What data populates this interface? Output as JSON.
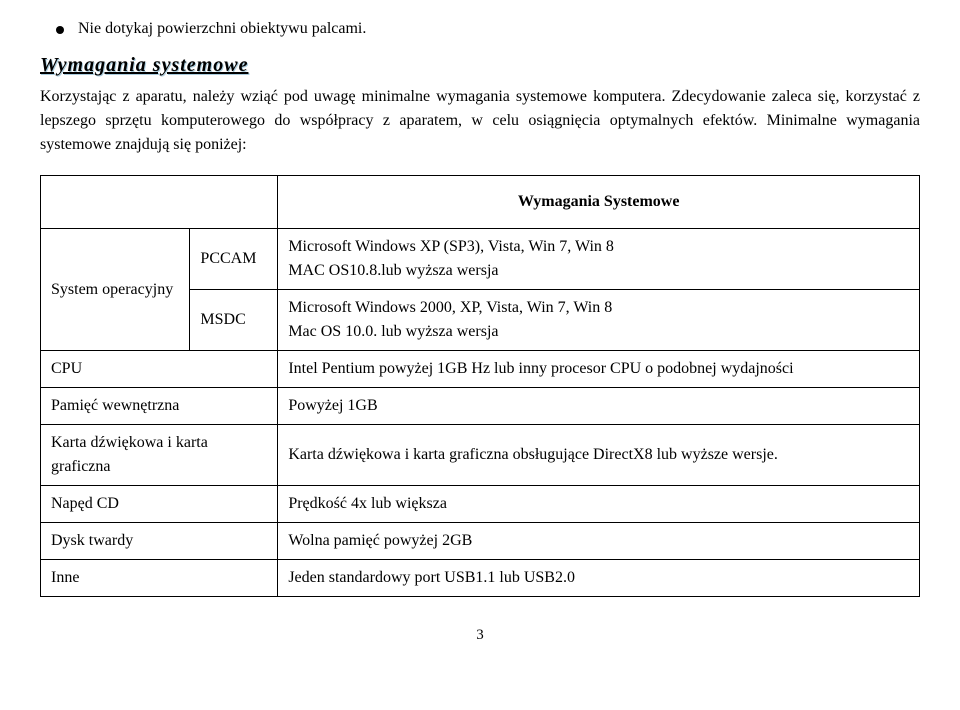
{
  "bullet_text": "Nie dotykaj powierzchni obiektywu palcami.",
  "heading": "Wymagania systemowe",
  "paragraph": "Korzystając z aparatu, należy wziąć pod uwagę minimalne wymagania systemowe komputera. Zdecydowanie zaleca się, korzystać z lepszego sprzętu komputerowego do współpracy z aparatem, w celu osiągnięcia optymalnych efektów. Minimalne wymagania systemowe znajdują się poniżej:",
  "table": {
    "header_req": "Wymagania Systemowe",
    "os_label": "System operacyjny",
    "os_col1": "PCCAM",
    "os_col2": "MSDC",
    "os_val1": "Microsoft Windows XP (SP3), Vista, Win 7, Win 8\nMAC OS10.8.lub wyższa wersja",
    "os_val2": "Microsoft Windows 2000, XP, Vista, Win 7, Win 8\nMac OS 10.0. lub wyższa wersja",
    "cpu_label": "CPU",
    "cpu_val": "Intel Pentium powyżej 1GB Hz lub inny procesor CPU o podobnej wydajności",
    "mem_label": "Pamięć wewnętrzna",
    "mem_val": "Powyżej 1GB",
    "card_label": "Karta dźwiękowa i karta graficzna",
    "card_val": "Karta dźwiękowa i karta graficzna obsługujące DirectX8 lub wyższe wersje.",
    "cd_label": "Napęd CD",
    "cd_val": "Prędkość 4x lub większa",
    "hdd_label": "Dysk twardy",
    "hdd_val": "Wolna pamięć powyżej 2GB",
    "other_label": "Inne",
    "other_val": "Jeden standardowy port USB1.1 lub USB2.0"
  },
  "page_number": "3"
}
